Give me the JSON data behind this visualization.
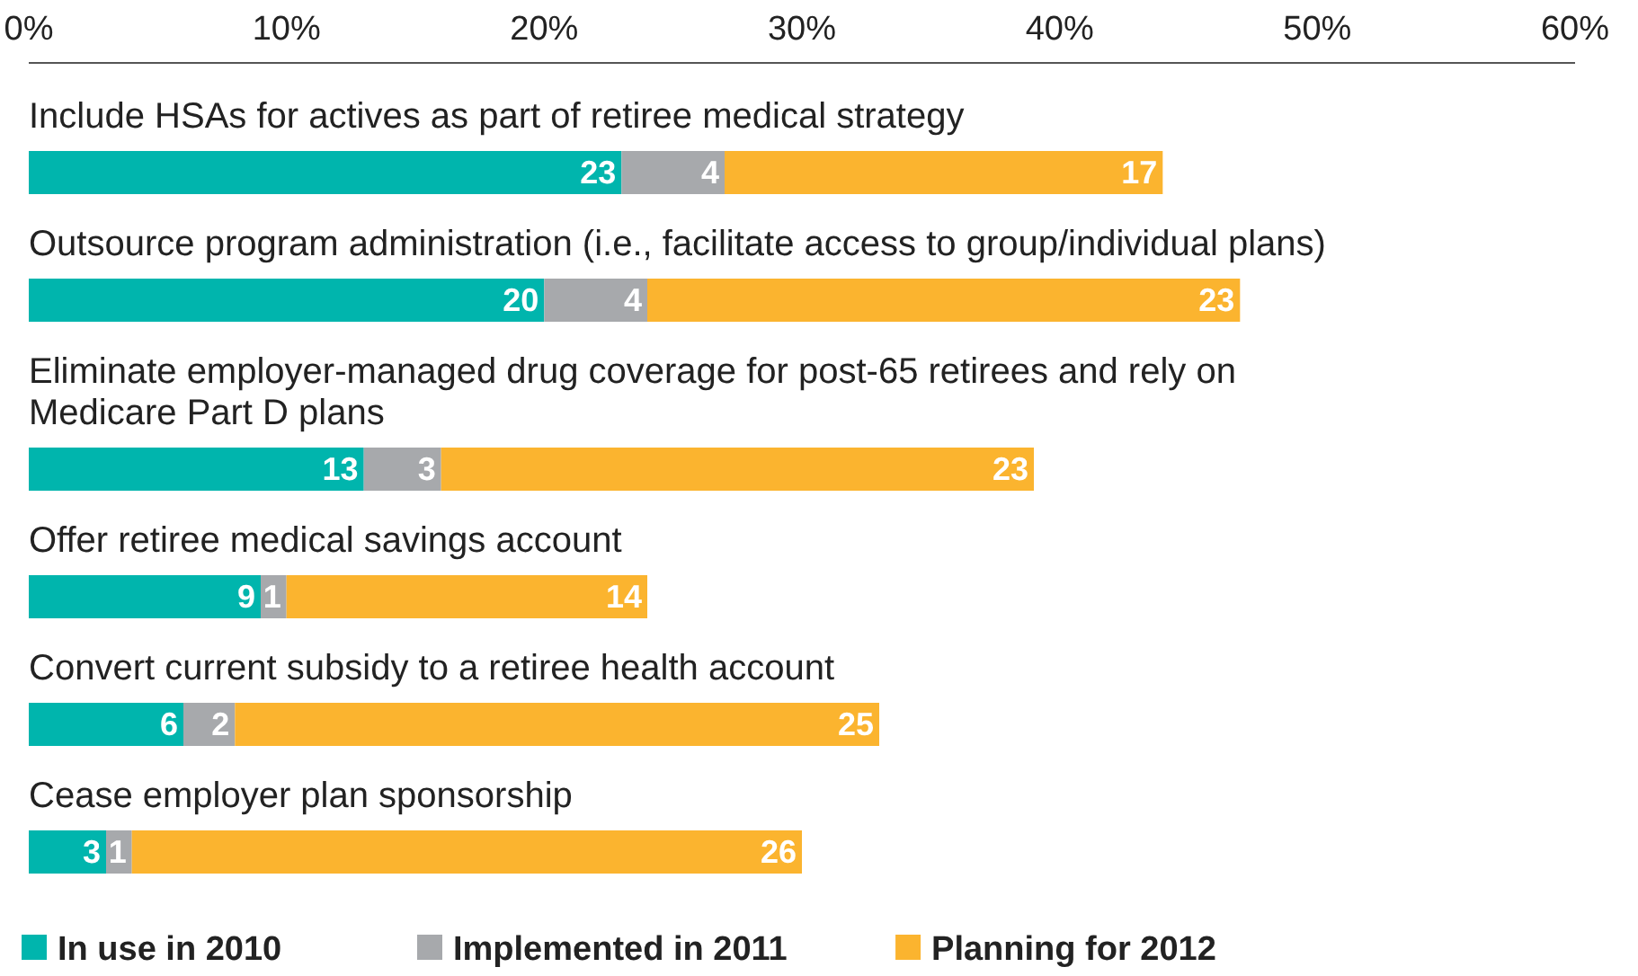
{
  "chart_data": {
    "type": "bar",
    "orientation": "horizontal",
    "stacked": true,
    "data_labels": true,
    "legend": "bottom left",
    "grid": false,
    "categories": [
      "Include HSAs for actives as part of retiree medical strategy",
      "Outsource program administration (i.e., facilitate access to group/individual plans)",
      "Eliminate employer-managed drug coverage for post-65 retirees and rely on Medicare Part D plans",
      "Offer retiree medical savings account",
      "Convert current subsidy to a retiree health account",
      "Cease employer plan sponsorship"
    ],
    "series": [
      {
        "name": "In use in 2010",
        "color": "#00b5ad",
        "values": [
          23,
          20,
          13,
          9,
          6,
          3
        ]
      },
      {
        "name": "Implemented in 2011",
        "color": "#a7a9ac",
        "values": [
          4,
          4,
          3,
          1,
          2,
          1
        ]
      },
      {
        "name": "Planning for 2012",
        "color": "#fbb42f",
        "values": [
          17,
          23,
          23,
          14,
          25,
          26
        ]
      }
    ],
    "xlim": [
      0,
      60
    ],
    "xticks": [
      {
        "value": 0,
        "label": "0%"
      },
      {
        "value": 10,
        "label": "10%"
      },
      {
        "value": 20,
        "label": "20%"
      },
      {
        "value": 30,
        "label": "30%"
      },
      {
        "value": 40,
        "label": "40%"
      },
      {
        "value": 50,
        "label": "50%"
      },
      {
        "value": 60,
        "label": "60%"
      }
    ]
  }
}
